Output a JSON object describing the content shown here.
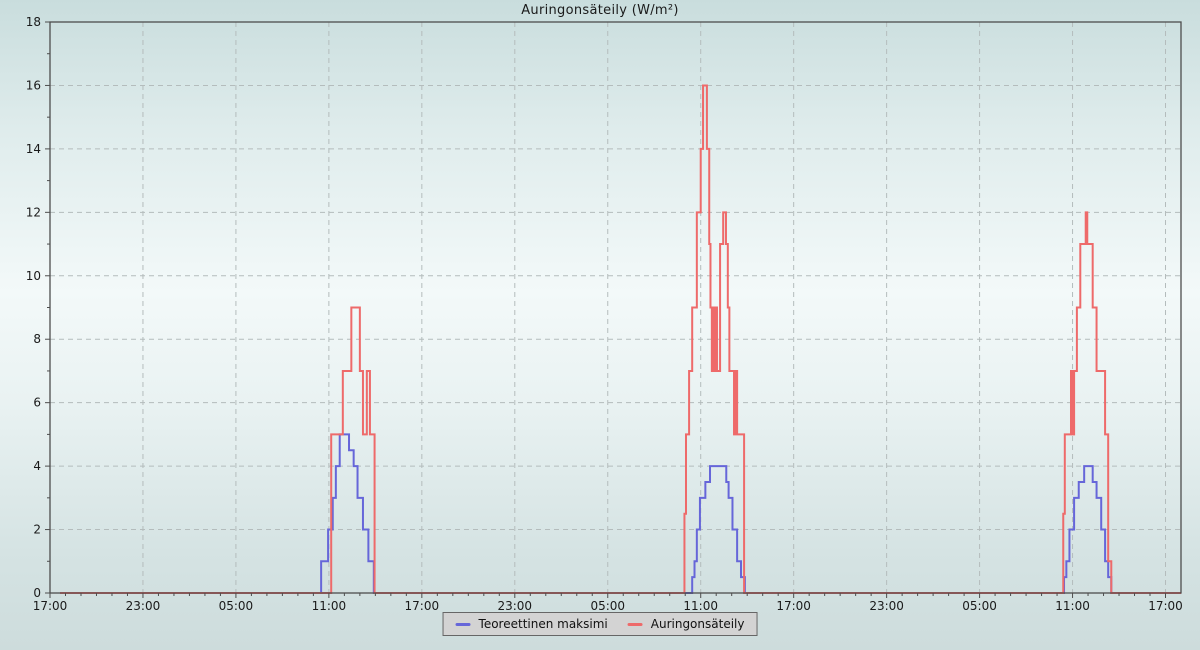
{
  "title": "Auringonsäteily (W/m²)",
  "legend": {
    "position": "bottom-center",
    "items": [
      {
        "label": "Teoreettinen maksimi",
        "color": "#6666d9"
      },
      {
        "label": "Auringonsäteily",
        "color": "#ee6a6a"
      }
    ]
  },
  "chart_data": {
    "type": "line",
    "line_style": "step-after",
    "title": "Auringonsäteily (W/m²)",
    "xlabel": "",
    "ylabel": "",
    "grid": true,
    "x_axis": {
      "min": 0,
      "max": 73,
      "unit": "hours-from-first-label",
      "major_every": 6,
      "minor_every": 1,
      "tick_labels": [
        "17:00",
        "23:00",
        "05:00",
        "11:00",
        "17:00",
        "23:00",
        "05:00",
        "11:00",
        "17:00",
        "23:00",
        "05:00",
        "11:00",
        "17:00"
      ]
    },
    "y_axis": {
      "min": 0,
      "max": 18,
      "major_every": 2,
      "minor_every": 1,
      "tick_labels": [
        "0",
        "2",
        "4",
        "6",
        "8",
        "10",
        "12",
        "14",
        "16",
        "18"
      ]
    },
    "series": [
      {
        "name": "Teoreettinen maksimi",
        "color": "#6666d9",
        "width": 2,
        "points": [
          [
            0.65,
            0
          ],
          [
            17.5,
            1
          ],
          [
            17.95,
            2
          ],
          [
            18.25,
            3
          ],
          [
            18.45,
            4
          ],
          [
            18.7,
            5
          ],
          [
            19.3,
            4.5
          ],
          [
            19.6,
            4
          ],
          [
            19.85,
            3
          ],
          [
            20.2,
            2
          ],
          [
            20.55,
            1
          ],
          [
            20.9,
            0
          ],
          [
            41.45,
            0.5
          ],
          [
            41.6,
            1
          ],
          [
            41.75,
            2
          ],
          [
            41.95,
            3
          ],
          [
            42.3,
            3.5
          ],
          [
            42.6,
            4
          ],
          [
            43.65,
            3.5
          ],
          [
            43.8,
            3
          ],
          [
            44.05,
            2
          ],
          [
            44.35,
            1
          ],
          [
            44.6,
            0.5
          ],
          [
            44.85,
            0
          ],
          [
            65.45,
            0.5
          ],
          [
            65.6,
            1
          ],
          [
            65.8,
            2
          ],
          [
            66.1,
            3
          ],
          [
            66.4,
            3.5
          ],
          [
            66.75,
            4
          ],
          [
            67.3,
            3.5
          ],
          [
            67.55,
            3
          ],
          [
            67.85,
            2
          ],
          [
            68.1,
            1
          ],
          [
            68.3,
            0.5
          ],
          [
            68.5,
            0
          ],
          [
            73,
            0
          ]
        ]
      },
      {
        "name": "Auringonsäteily",
        "color": "#ee6a6a",
        "width": 2,
        "points": [
          [
            0.65,
            0
          ],
          [
            18.15,
            5
          ],
          [
            18.9,
            7
          ],
          [
            19.45,
            9
          ],
          [
            20.0,
            7
          ],
          [
            20.2,
            5
          ],
          [
            20.45,
            7
          ],
          [
            20.65,
            5
          ],
          [
            20.95,
            0
          ],
          [
            40.95,
            2.5
          ],
          [
            41.05,
            5
          ],
          [
            41.25,
            7
          ],
          [
            41.45,
            9
          ],
          [
            41.75,
            12
          ],
          [
            42.0,
            14
          ],
          [
            42.15,
            16
          ],
          [
            42.4,
            14
          ],
          [
            42.55,
            11
          ],
          [
            42.63,
            9
          ],
          [
            42.72,
            7
          ],
          [
            42.8,
            9
          ],
          [
            42.88,
            7
          ],
          [
            42.97,
            9
          ],
          [
            43.05,
            7
          ],
          [
            43.25,
            11
          ],
          [
            43.45,
            12
          ],
          [
            43.63,
            11
          ],
          [
            43.75,
            9
          ],
          [
            43.85,
            7
          ],
          [
            44.15,
            5
          ],
          [
            44.25,
            7
          ],
          [
            44.35,
            5
          ],
          [
            44.8,
            0
          ],
          [
            65.4,
            2.5
          ],
          [
            65.5,
            5
          ],
          [
            65.9,
            7
          ],
          [
            66.0,
            5
          ],
          [
            66.1,
            7
          ],
          [
            66.28,
            9
          ],
          [
            66.5,
            11
          ],
          [
            66.85,
            12
          ],
          [
            66.95,
            11
          ],
          [
            67.3,
            9
          ],
          [
            67.55,
            7
          ],
          [
            68.1,
            5
          ],
          [
            68.3,
            1
          ],
          [
            68.5,
            0
          ],
          [
            73,
            0
          ]
        ]
      }
    ]
  }
}
